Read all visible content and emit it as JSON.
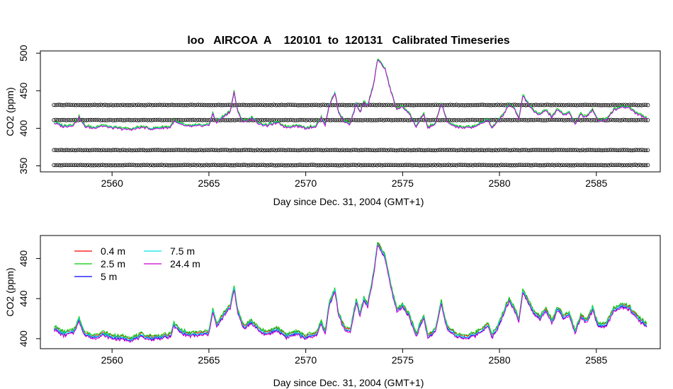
{
  "chart_data": [
    {
      "type": "line",
      "title": "loo   AIRCOA  A    120101  to  120131   Calibrated Timeseries",
      "xlabel": "Day since Dec. 31, 2004 (GMT+1)",
      "ylabel": "CO2 (ppm)",
      "xlim": [
        2556.3,
        2588.3
      ],
      "ylim": [
        342,
        503
      ],
      "x_ticks": [
        2560,
        2565,
        2570,
        2575,
        2580,
        2585
      ],
      "y_ticks": [
        350,
        400,
        450,
        500
      ],
      "grid": false,
      "legend": "none",
      "series": [
        {
          "color": "#cc00cc",
          "points": [
            [
              2557.0,
              407
            ],
            [
              2557.5,
              402
            ],
            [
              2558.0,
              404
            ],
            [
              2558.3,
              414
            ],
            [
              2558.6,
              402
            ],
            [
              2559.0,
              400
            ],
            [
              2559.5,
              403
            ],
            [
              2560.0,
              400
            ],
            [
              2560.5,
              399
            ],
            [
              2561.0,
              398
            ],
            [
              2561.5,
              401
            ],
            [
              2562.0,
              399
            ],
            [
              2562.5,
              400
            ],
            [
              2563.0,
              401
            ],
            [
              2563.2,
              409
            ],
            [
              2563.5,
              405
            ],
            [
              2564.0,
              402
            ],
            [
              2564.5,
              403
            ],
            [
              2565.0,
              404
            ],
            [
              2565.2,
              418
            ],
            [
              2565.4,
              408
            ],
            [
              2565.8,
              416
            ],
            [
              2566.1,
              422
            ],
            [
              2566.3,
              448
            ],
            [
              2566.5,
              420
            ],
            [
              2566.8,
              408
            ],
            [
              2567.2,
              413
            ],
            [
              2567.6,
              406
            ],
            [
              2568.0,
              403
            ],
            [
              2568.5,
              407
            ],
            [
              2569.0,
              401
            ],
            [
              2569.5,
              403
            ],
            [
              2570.0,
              400
            ],
            [
              2570.5,
              402
            ],
            [
              2570.8,
              413
            ],
            [
              2571.0,
              404
            ],
            [
              2571.2,
              429
            ],
            [
              2571.5,
              447
            ],
            [
              2571.7,
              420
            ],
            [
              2572.0,
              409
            ],
            [
              2572.3,
              405
            ],
            [
              2572.6,
              432
            ],
            [
              2572.8,
              420
            ],
            [
              2573.0,
              434
            ],
            [
              2573.2,
              430
            ],
            [
              2573.5,
              458
            ],
            [
              2573.7,
              490
            ],
            [
              2573.9,
              486
            ],
            [
              2574.1,
              478
            ],
            [
              2574.4,
              448
            ],
            [
              2574.7,
              425
            ],
            [
              2575.0,
              428
            ],
            [
              2575.3,
              421
            ],
            [
              2575.7,
              402
            ],
            [
              2576.1,
              418
            ],
            [
              2576.3,
              400
            ],
            [
              2576.7,
              406
            ],
            [
              2577.0,
              433
            ],
            [
              2577.3,
              408
            ],
            [
              2577.7,
              402
            ],
            [
              2578.2,
              400
            ],
            [
              2578.7,
              402
            ],
            [
              2579.1,
              406
            ],
            [
              2579.4,
              412
            ],
            [
              2579.6,
              400
            ],
            [
              2580.0,
              411
            ],
            [
              2580.3,
              422
            ],
            [
              2580.5,
              432
            ],
            [
              2580.8,
              425
            ],
            [
              2581.0,
              412
            ],
            [
              2581.2,
              443
            ],
            [
              2581.5,
              432
            ],
            [
              2581.8,
              422
            ],
            [
              2582.1,
              418
            ],
            [
              2582.4,
              424
            ],
            [
              2582.7,
              414
            ],
            [
              2583.0,
              425
            ],
            [
              2583.3,
              418
            ],
            [
              2583.6,
              420
            ],
            [
              2583.9,
              405
            ],
            [
              2584.2,
              418
            ],
            [
              2584.5,
              414
            ],
            [
              2584.8,
              425
            ],
            [
              2585.1,
              410
            ],
            [
              2585.5,
              411
            ],
            [
              2585.9,
              424
            ],
            [
              2586.3,
              428
            ],
            [
              2586.7,
              427
            ],
            [
              2587.1,
              419
            ],
            [
              2587.6,
              413
            ]
          ]
        }
      ],
      "reference_series": [
        {
          "style": "open-circle",
          "x_range": [
            2557.0,
            2587.7
          ],
          "y": 431
        },
        {
          "style": "open-circle",
          "x_range": [
            2557.0,
            2587.7
          ],
          "y": 411
        },
        {
          "style": "open-circle",
          "x_range": [
            2557.0,
            2587.7
          ],
          "y": 371
        },
        {
          "style": "open-circle",
          "x_range": [
            2557.0,
            2587.7
          ],
          "y": 351
        }
      ]
    },
    {
      "type": "line",
      "xlabel": "Day since Dec. 31, 2004 (GMT+1)",
      "ylabel": "CO2 (ppm)",
      "xlim": [
        2556.3,
        2588.3
      ],
      "ylim": [
        390,
        503
      ],
      "x_ticks": [
        2560,
        2565,
        2570,
        2575,
        2580,
        2585
      ],
      "y_ticks": [
        400,
        440,
        480
      ],
      "grid": false,
      "legend": "top-left",
      "series": [
        {
          "name": "0.4 m",
          "color": "#ff0000",
          "offset": 2
        },
        {
          "name": "2.5 m",
          "color": "#00cc00",
          "offset": 3
        },
        {
          "name": "5 m",
          "color": "#0000ff",
          "offset": 0
        },
        {
          "name": "7.5 m",
          "color": "#00e5e5",
          "offset": 1
        },
        {
          "name": "24.4 m",
          "color": "#cc00cc",
          "offset": -1
        }
      ],
      "points": [
        [
          2557.0,
          410
        ],
        [
          2557.5,
          404
        ],
        [
          2558.0,
          406
        ],
        [
          2558.3,
          418
        ],
        [
          2558.6,
          404
        ],
        [
          2559.0,
          401
        ],
        [
          2559.5,
          404
        ],
        [
          2560.0,
          401
        ],
        [
          2560.5,
          400
        ],
        [
          2561.0,
          399
        ],
        [
          2561.5,
          402
        ],
        [
          2562.0,
          400
        ],
        [
          2562.5,
          401
        ],
        [
          2563.0,
          402
        ],
        [
          2563.2,
          413
        ],
        [
          2563.5,
          407
        ],
        [
          2564.0,
          403
        ],
        [
          2564.5,
          404
        ],
        [
          2565.0,
          405
        ],
        [
          2565.2,
          428
        ],
        [
          2565.4,
          412
        ],
        [
          2565.8,
          424
        ],
        [
          2566.1,
          431
        ],
        [
          2566.3,
          451
        ],
        [
          2566.5,
          425
        ],
        [
          2566.8,
          411
        ],
        [
          2567.2,
          416
        ],
        [
          2567.6,
          408
        ],
        [
          2568.0,
          404
        ],
        [
          2568.5,
          409
        ],
        [
          2569.0,
          402
        ],
        [
          2569.5,
          405
        ],
        [
          2570.0,
          401
        ],
        [
          2570.5,
          403
        ],
        [
          2570.8,
          415
        ],
        [
          2571.0,
          405
        ],
        [
          2571.2,
          433
        ],
        [
          2571.5,
          448
        ],
        [
          2571.7,
          423
        ],
        [
          2572.0,
          410
        ],
        [
          2572.3,
          406
        ],
        [
          2572.6,
          437
        ],
        [
          2572.8,
          423
        ],
        [
          2573.0,
          439
        ],
        [
          2573.2,
          433
        ],
        [
          2573.5,
          463
        ],
        [
          2573.7,
          493
        ],
        [
          2573.9,
          488
        ],
        [
          2574.1,
          480
        ],
        [
          2574.4,
          451
        ],
        [
          2574.7,
          428
        ],
        [
          2575.0,
          432
        ],
        [
          2575.3,
          424
        ],
        [
          2575.7,
          403
        ],
        [
          2576.1,
          421
        ],
        [
          2576.3,
          401
        ],
        [
          2576.7,
          408
        ],
        [
          2577.0,
          436
        ],
        [
          2577.3,
          410
        ],
        [
          2577.7,
          403
        ],
        [
          2578.2,
          401
        ],
        [
          2578.7,
          403
        ],
        [
          2579.1,
          408
        ],
        [
          2579.4,
          414
        ],
        [
          2579.6,
          401
        ],
        [
          2580.0,
          414
        ],
        [
          2580.3,
          430
        ],
        [
          2580.5,
          438
        ],
        [
          2580.8,
          428
        ],
        [
          2581.0,
          416
        ],
        [
          2581.2,
          448
        ],
        [
          2581.5,
          436
        ],
        [
          2581.8,
          425
        ],
        [
          2582.1,
          420
        ],
        [
          2582.4,
          428
        ],
        [
          2582.7,
          416
        ],
        [
          2583.0,
          429
        ],
        [
          2583.3,
          421
        ],
        [
          2583.6,
          423
        ],
        [
          2583.9,
          406
        ],
        [
          2584.2,
          421
        ],
        [
          2584.5,
          416
        ],
        [
          2584.8,
          429
        ],
        [
          2585.1,
          412
        ],
        [
          2585.5,
          413
        ],
        [
          2585.9,
          428
        ],
        [
          2586.3,
          432
        ],
        [
          2586.7,
          430
        ],
        [
          2587.1,
          421
        ],
        [
          2587.6,
          412
        ]
      ]
    }
  ]
}
